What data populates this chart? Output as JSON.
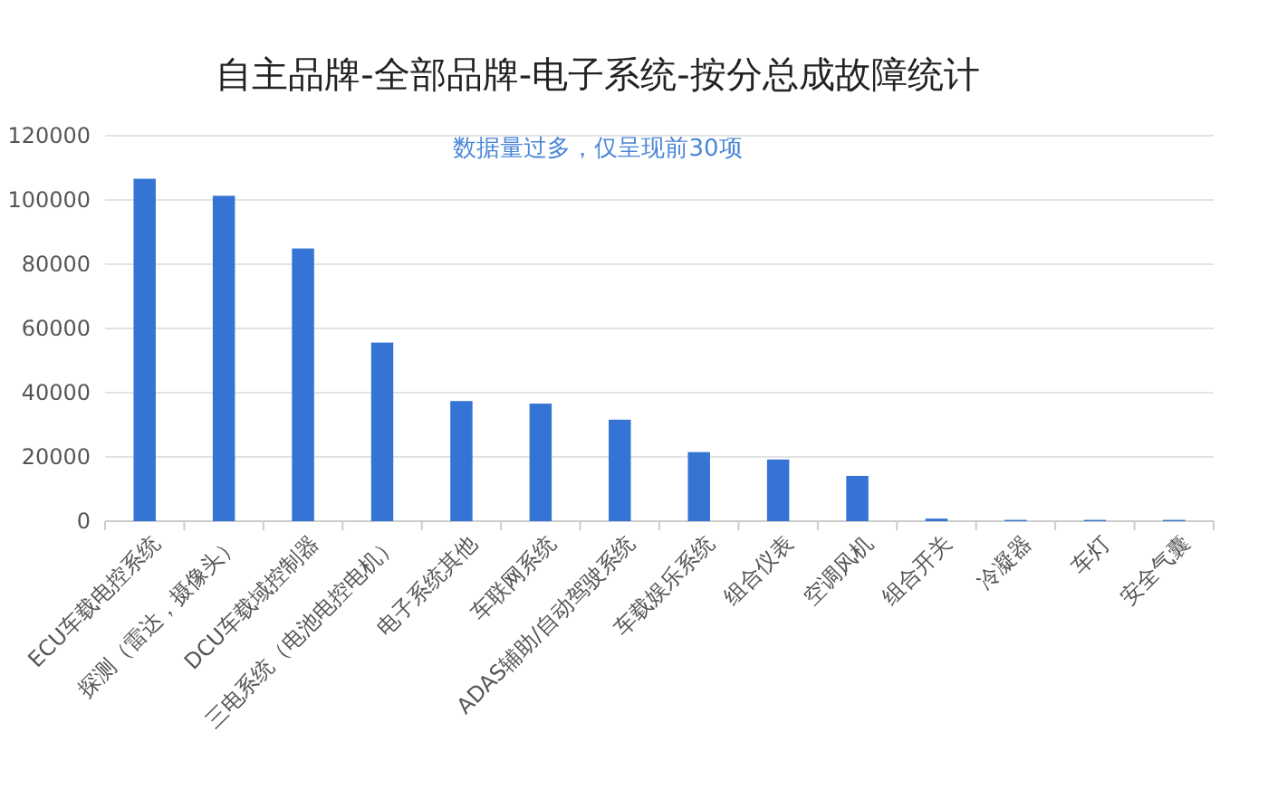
{
  "chart_data": {
    "type": "bar",
    "title": "自主品牌-全部品牌-电子系统-按分总成故障统计",
    "annotations": [
      "数据量过多，仅呈现前30项"
    ],
    "categories": [
      "ECU车载电控系统",
      "探测（雷达，摄像头）",
      "DCU车载域控制器",
      "三电系统（电池电控电机）",
      "电子系统其他",
      "车联网系统",
      "ADAS辅助/自动驾驶系统",
      "车载娱乐系统",
      "组合仪表",
      "空调风机",
      "组合开关",
      "冷凝器",
      "车灯",
      "安全气囊"
    ],
    "values": [
      106600,
      101300,
      84900,
      55600,
      37400,
      36600,
      31600,
      21500,
      19200,
      14100,
      800,
      400,
      400,
      400
    ],
    "color": "#3574d4",
    "ylim": [
      0,
      120000
    ],
    "yticks": [
      0,
      20000,
      40000,
      60000,
      80000,
      100000,
      120000
    ],
    "grid": "y"
  }
}
